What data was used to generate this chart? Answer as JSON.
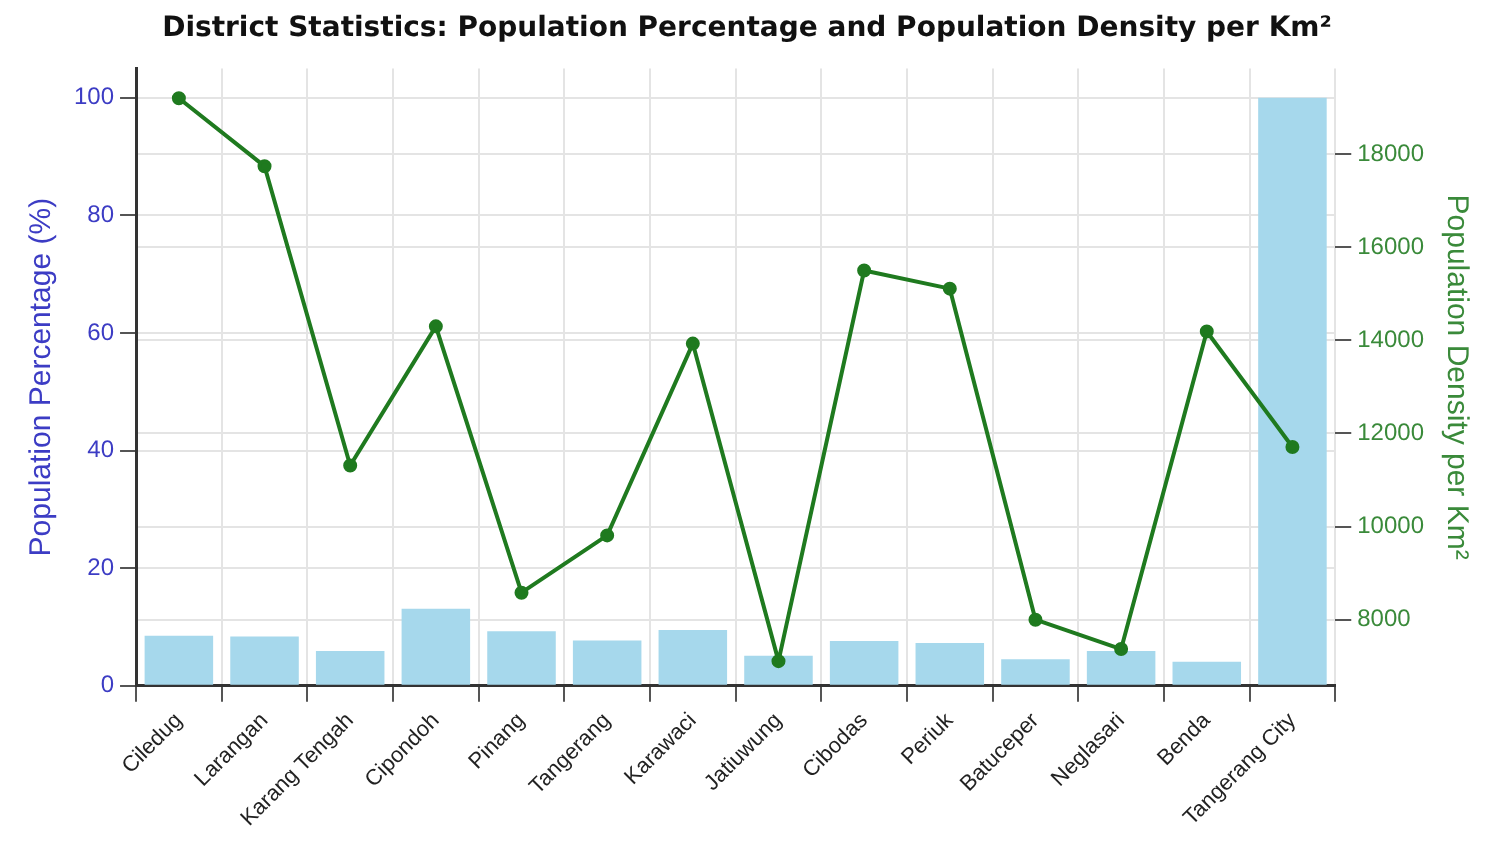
{
  "chart_data": {
    "type": "bar",
    "title": "District Statistics: Population Percentage and Population Density per Km²",
    "ylabel": "Population Percentage (%)",
    "y2label": "Population Density per Km²",
    "categories": [
      "Ciledug",
      "Larangan",
      "Karang Tengah",
      "Cipondoh",
      "Pinang",
      "Tangerang",
      "Karawaci",
      "Jatiuwung",
      "Cibodas",
      "Periuk",
      "Batuceper",
      "Neglasari",
      "Benda",
      "Tangerang City"
    ],
    "series": [
      {
        "color": "#a6d8ec",
        "values": [
          8.5,
          8.4,
          5.9,
          13.1,
          9.3,
          7.7,
          9.5,
          5.1,
          7.6,
          7.3,
          4.5,
          5.9,
          4.1,
          100
        ]
      },
      {
        "type": "line",
        "axis": "y2",
        "color": "#1f7a1f",
        "values": [
          19200,
          17740,
          11310,
          14300,
          8580,
          9810,
          13930,
          7110,
          15500,
          15110,
          8000,
          7370,
          14190,
          11710
        ]
      }
    ],
    "ylim": [
      0,
      105
    ],
    "yticks": [
      0,
      20,
      40,
      60,
      80,
      100
    ],
    "y2lim": [
      6580,
      19840
    ],
    "y2ticks": [
      8000,
      10000,
      12000,
      14000,
      16000,
      18000
    ],
    "grid": true,
    "legend": false,
    "marker": "circle",
    "line_style": "solid"
  }
}
